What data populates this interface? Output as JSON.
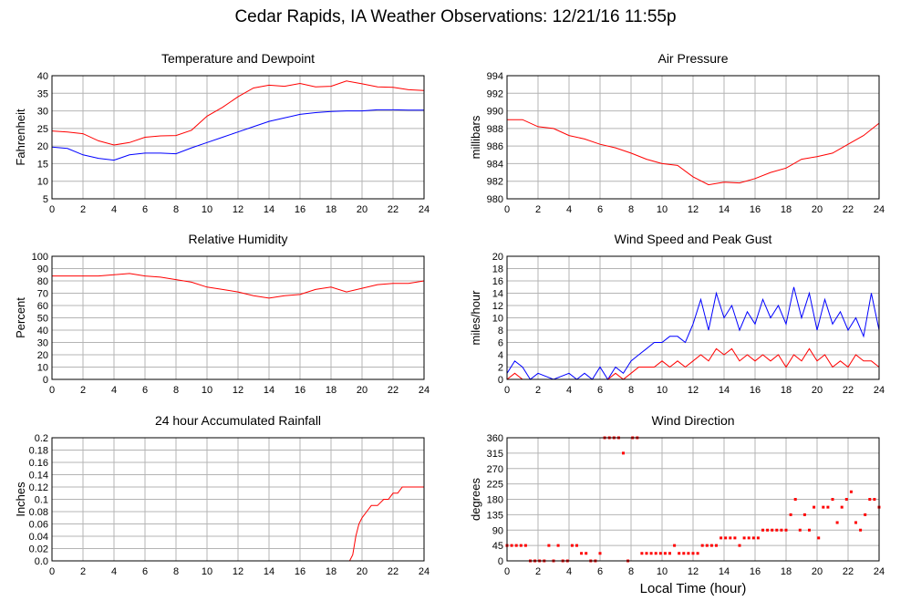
{
  "page": {
    "title": "Cedar Rapids, IA Weather Observations: 12/21/16 11:55p",
    "x_axis_label": "Local Time (hour)"
  },
  "colors": {
    "red": "#ff0000",
    "blue": "#0000ff",
    "grid": "#b4b4b4",
    "frame": "#000000"
  },
  "chart_data": [
    {
      "id": "temp",
      "type": "line",
      "title": "Temperature and Dewpoint",
      "ylabel": "Fahrenheit",
      "xlim": [
        0,
        24
      ],
      "ylim": [
        5,
        40
      ],
      "xticks": [
        0,
        2,
        4,
        6,
        8,
        10,
        12,
        14,
        16,
        18,
        20,
        22,
        24
      ],
      "yticks": [
        5,
        10,
        15,
        20,
        25,
        30,
        35,
        40
      ],
      "grid": true,
      "series": [
        {
          "color": "#ff0000",
          "x": [
            0,
            1,
            2,
            3,
            4,
            5,
            6,
            7,
            8,
            9,
            10,
            11,
            12,
            13,
            14,
            15,
            16,
            17,
            18,
            19,
            20,
            21,
            22,
            23,
            24
          ],
          "values": [
            24.3,
            24,
            23.5,
            21.5,
            20.3,
            21,
            22.5,
            22.9,
            23,
            24.5,
            28.5,
            31,
            34,
            36.5,
            37.3,
            37,
            37.8,
            36.8,
            37,
            38.5,
            37.7,
            36.8,
            36.7,
            36,
            35.8
          ]
        },
        {
          "color": "#0000ff",
          "x": [
            0,
            1,
            2,
            3,
            4,
            5,
            6,
            7,
            8,
            9,
            10,
            11,
            12,
            13,
            14,
            15,
            16,
            17,
            18,
            19,
            20,
            21,
            22,
            23,
            24
          ],
          "values": [
            19.7,
            19.3,
            17.5,
            16.5,
            16,
            17.5,
            18,
            18,
            17.8,
            19.5,
            21,
            22.5,
            24,
            25.5,
            27,
            28,
            29,
            29.5,
            29.8,
            30,
            30,
            30.3,
            30.3,
            30.2,
            30.2
          ]
        }
      ]
    },
    {
      "id": "pressure",
      "type": "line",
      "title": "Air Pressure",
      "ylabel": "millibars",
      "xlim": [
        0,
        24
      ],
      "ylim": [
        980,
        994
      ],
      "xticks": [
        0,
        2,
        4,
        6,
        8,
        10,
        12,
        14,
        16,
        18,
        20,
        22,
        24
      ],
      "yticks": [
        980,
        982,
        984,
        986,
        988,
        990,
        992,
        994
      ],
      "grid": true,
      "series": [
        {
          "color": "#ff0000",
          "x": [
            0,
            1,
            2,
            3,
            4,
            5,
            6,
            7,
            8,
            9,
            10,
            11,
            12,
            13,
            14,
            15,
            16,
            17,
            18,
            19,
            20,
            21,
            22,
            23,
            24
          ],
          "values": [
            989,
            989,
            988.2,
            988,
            987.2,
            986.8,
            986.2,
            985.8,
            985.2,
            984.5,
            984,
            983.8,
            982.5,
            981.6,
            981.9,
            981.8,
            982.3,
            983,
            983.5,
            984.5,
            984.8,
            985.2,
            986.2,
            987.2,
            988.6
          ]
        }
      ]
    },
    {
      "id": "rh",
      "type": "line",
      "title": "Relative Humidity",
      "ylabel": "Percent",
      "xlim": [
        0,
        24
      ],
      "ylim": [
        0,
        100
      ],
      "xticks": [
        0,
        2,
        4,
        6,
        8,
        10,
        12,
        14,
        16,
        18,
        20,
        22,
        24
      ],
      "yticks": [
        0,
        10,
        20,
        30,
        40,
        50,
        60,
        70,
        80,
        90,
        100
      ],
      "grid": true,
      "series": [
        {
          "color": "#ff0000",
          "x": [
            0,
            1,
            2,
            3,
            4,
            5,
            6,
            7,
            8,
            9,
            10,
            11,
            12,
            13,
            14,
            15,
            16,
            17,
            18,
            19,
            20,
            21,
            22,
            23,
            24
          ],
          "values": [
            84,
            84,
            84,
            84,
            85,
            86,
            84,
            83,
            81,
            79,
            75,
            73,
            71,
            68,
            66,
            68,
            69,
            73,
            75,
            71,
            74,
            77,
            78,
            78,
            80
          ]
        }
      ]
    },
    {
      "id": "wind",
      "type": "line",
      "title": "Wind Speed and Peak Gust",
      "ylabel": "miles/hour",
      "xlim": [
        0,
        24
      ],
      "ylim": [
        0,
        20
      ],
      "xticks": [
        0,
        2,
        4,
        6,
        8,
        10,
        12,
        14,
        16,
        18,
        20,
        22,
        24
      ],
      "yticks": [
        0,
        2,
        4,
        6,
        8,
        10,
        12,
        14,
        16,
        18,
        20
      ],
      "grid": true,
      "series": [
        {
          "color": "#0000ff",
          "x": [
            0,
            0.5,
            1,
            1.5,
            2,
            3,
            4,
            4.5,
            5,
            5.5,
            6,
            6.5,
            7,
            7.5,
            8,
            8.5,
            9,
            9.5,
            10,
            10.5,
            11,
            11.5,
            12,
            12.5,
            13,
            13.5,
            14,
            14.5,
            15,
            15.5,
            16,
            16.5,
            17,
            17.5,
            18,
            18.5,
            19,
            19.5,
            20,
            20.5,
            21,
            21.5,
            22,
            22.5,
            23,
            23.5,
            24
          ],
          "values": [
            1,
            3,
            2,
            0,
            1,
            0,
            1,
            0,
            1,
            0,
            2,
            0,
            2,
            1,
            3,
            4,
            5,
            6,
            6,
            7,
            7,
            6,
            9,
            13,
            8,
            14,
            10,
            12,
            8,
            11,
            9,
            13,
            10,
            12,
            9,
            15,
            10,
            14,
            8,
            13,
            9,
            11,
            8,
            10,
            7,
            14,
            8
          ]
        },
        {
          "color": "#ff0000",
          "x": [
            0,
            0.5,
            1,
            1.5,
            2,
            3,
            4,
            4.5,
            5,
            5.5,
            6,
            6.5,
            7,
            7.5,
            8,
            8.5,
            9,
            9.5,
            10,
            10.5,
            11,
            11.5,
            12,
            12.5,
            13,
            13.5,
            14,
            14.5,
            15,
            15.5,
            16,
            16.5,
            17,
            17.5,
            18,
            18.5,
            19,
            19.5,
            20,
            20.5,
            21,
            21.5,
            22,
            22.5,
            23,
            23.5,
            24
          ],
          "values": [
            0,
            1,
            0,
            0,
            0,
            0,
            0,
            0,
            0,
            0,
            0,
            0,
            1,
            0,
            1,
            2,
            2,
            2,
            3,
            2,
            3,
            2,
            3,
            4,
            3,
            5,
            4,
            5,
            3,
            4,
            3,
            4,
            3,
            4,
            2,
            4,
            3,
            5,
            3,
            4,
            2,
            3,
            2,
            4,
            3,
            3,
            2
          ]
        }
      ]
    },
    {
      "id": "rain",
      "type": "line",
      "title": "24 hour Accumulated Rainfall",
      "ylabel": "Inches",
      "xlim": [
        0,
        24
      ],
      "ylim": [
        0,
        0.2
      ],
      "xticks": [
        0,
        2,
        4,
        6,
        8,
        10,
        12,
        14,
        16,
        18,
        20,
        22,
        24
      ],
      "yticks": [
        0,
        0.02,
        0.04,
        0.06,
        0.08,
        0.1,
        0.12,
        0.14,
        0.16,
        0.18,
        0.2
      ],
      "ytick_labels": [
        "0.0",
        "0.02",
        "0.04",
        "0.06",
        "0.08",
        "0.1",
        "0.12",
        "0.14",
        "0.16",
        "0.18",
        "0.2"
      ],
      "grid": true,
      "series": [
        {
          "color": "#ff0000",
          "x": [
            0,
            19.2,
            19.4,
            19.6,
            19.8,
            20,
            20.3,
            20.6,
            21,
            21.4,
            21.7,
            22,
            22.3,
            22.6,
            24
          ],
          "values": [
            0,
            0,
            0.01,
            0.04,
            0.06,
            0.07,
            0.08,
            0.09,
            0.09,
            0.1,
            0.1,
            0.11,
            0.11,
            0.12,
            0.12
          ]
        }
      ]
    },
    {
      "id": "winddir",
      "type": "scatter",
      "title": "Wind Direction",
      "ylabel": "degrees",
      "xlabel": "Local Time (hour)",
      "xlim": [
        0,
        24
      ],
      "ylim": [
        0,
        360
      ],
      "xticks": [
        0,
        2,
        4,
        6,
        8,
        10,
        12,
        14,
        16,
        18,
        20,
        22,
        24
      ],
      "yticks": [
        0,
        45,
        90,
        135,
        180,
        225,
        270,
        315,
        360
      ],
      "grid": true,
      "series": [
        {
          "color": "#ff0000",
          "points": [
            [
              0,
              45
            ],
            [
              0.3,
              45
            ],
            [
              0.6,
              45
            ],
            [
              0.9,
              45
            ],
            [
              1.2,
              45
            ],
            [
              1.5,
              0
            ],
            [
              1.8,
              0
            ],
            [
              2.1,
              0
            ],
            [
              2.4,
              0
            ],
            [
              2.7,
              45
            ],
            [
              3,
              0
            ],
            [
              3.3,
              45
            ],
            [
              3.6,
              0
            ],
            [
              3.9,
              0
            ],
            [
              4.2,
              45
            ],
            [
              4.5,
              45
            ],
            [
              4.8,
              22
            ],
            [
              5.1,
              22
            ],
            [
              5.4,
              0
            ],
            [
              5.7,
              0
            ],
            [
              6,
              22
            ],
            [
              6.3,
              360
            ],
            [
              6.6,
              360
            ],
            [
              6.9,
              360
            ],
            [
              7.2,
              360
            ],
            [
              7.5,
              315
            ],
            [
              7.8,
              0
            ],
            [
              8.1,
              360
            ],
            [
              8.4,
              360
            ],
            [
              8.7,
              22
            ],
            [
              9,
              22
            ],
            [
              9.3,
              22
            ],
            [
              9.6,
              22
            ],
            [
              9.9,
              22
            ],
            [
              10.2,
              22
            ],
            [
              10.5,
              22
            ],
            [
              10.8,
              45
            ],
            [
              11.1,
              22
            ],
            [
              11.4,
              22
            ],
            [
              11.7,
              22
            ],
            [
              12,
              22
            ],
            [
              12.3,
              22
            ],
            [
              12.6,
              45
            ],
            [
              12.9,
              45
            ],
            [
              13.2,
              45
            ],
            [
              13.5,
              45
            ],
            [
              13.8,
              67
            ],
            [
              14.1,
              67
            ],
            [
              14.4,
              67
            ],
            [
              14.7,
              67
            ],
            [
              15,
              45
            ],
            [
              15.3,
              67
            ],
            [
              15.6,
              67
            ],
            [
              15.9,
              67
            ],
            [
              16.2,
              67
            ],
            [
              16.5,
              90
            ],
            [
              16.8,
              90
            ],
            [
              17.1,
              90
            ],
            [
              17.4,
              90
            ],
            [
              17.7,
              90
            ],
            [
              18,
              90
            ],
            [
              18.3,
              135
            ],
            [
              18.6,
              180
            ],
            [
              18.9,
              90
            ],
            [
              19.2,
              135
            ],
            [
              19.5,
              90
            ],
            [
              19.8,
              157
            ],
            [
              20.1,
              67
            ],
            [
              20.4,
              157
            ],
            [
              20.7,
              157
            ],
            [
              21,
              180
            ],
            [
              21.3,
              112
            ],
            [
              21.6,
              157
            ],
            [
              21.9,
              180
            ],
            [
              22.2,
              202
            ],
            [
              22.5,
              112
            ],
            [
              22.8,
              90
            ],
            [
              23.1,
              135
            ],
            [
              23.4,
              180
            ],
            [
              23.7,
              180
            ],
            [
              24,
              157
            ]
          ]
        }
      ]
    }
  ]
}
